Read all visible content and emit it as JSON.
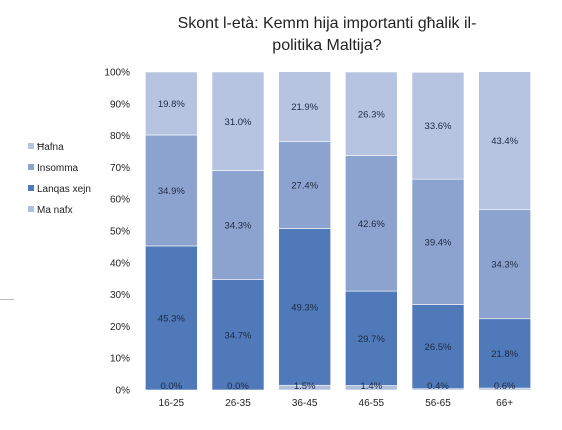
{
  "chart_data": {
    "type": "bar",
    "stacked": true,
    "title": [
      "Skont l-età: Kemm hija importanti għalik il-",
      "politika Maltija?"
    ],
    "categories": [
      "16-25",
      "26-35",
      "36-45",
      "46-55",
      "56-65",
      "66+"
    ],
    "y_ticks": [
      "0%",
      "10%",
      "20%",
      "30%",
      "40%",
      "50%",
      "60%",
      "70%",
      "80%",
      "90%",
      "100%"
    ],
    "ylim": [
      0,
      100
    ],
    "grid": false,
    "legend_position": "left",
    "series": [
      {
        "name": "Ma nafx",
        "color": "#b0bfdc",
        "values": [
          0.0,
          0.0,
          1.5,
          1.4,
          0.4,
          0.6
        ],
        "labels": [
          "0.0%",
          "0.0%",
          "1.5%",
          "1.4%",
          "0.4%",
          "0.6%"
        ]
      },
      {
        "name": "Lanqas xejn",
        "color": "#4f79b8",
        "values": [
          45.3,
          34.7,
          49.3,
          29.7,
          26.5,
          21.8
        ],
        "labels": [
          "45.3%",
          "34.7%",
          "49.3%",
          "29.7%",
          "26.5%",
          "21.8%"
        ]
      },
      {
        "name": "Insomma",
        "color": "#8da3cf",
        "values": [
          34.9,
          34.3,
          27.4,
          42.6,
          39.4,
          34.3
        ],
        "labels": [
          "34.9%",
          "34.3%",
          "27.4%",
          "42.6%",
          "39.4%",
          "34.3%"
        ]
      },
      {
        "name": "Ħafna",
        "color": "#b7c4e1",
        "values": [
          19.8,
          31.0,
          21.9,
          26.3,
          33.6,
          43.4
        ],
        "labels": [
          "19.8%",
          "31.0%",
          "21.9%",
          "26.3%",
          "33.6%",
          "43.4%"
        ]
      }
    ],
    "legend_order": [
      "Ħafna",
      "Insomma",
      "Lanqas xejn",
      "Ma nafx"
    ]
  }
}
